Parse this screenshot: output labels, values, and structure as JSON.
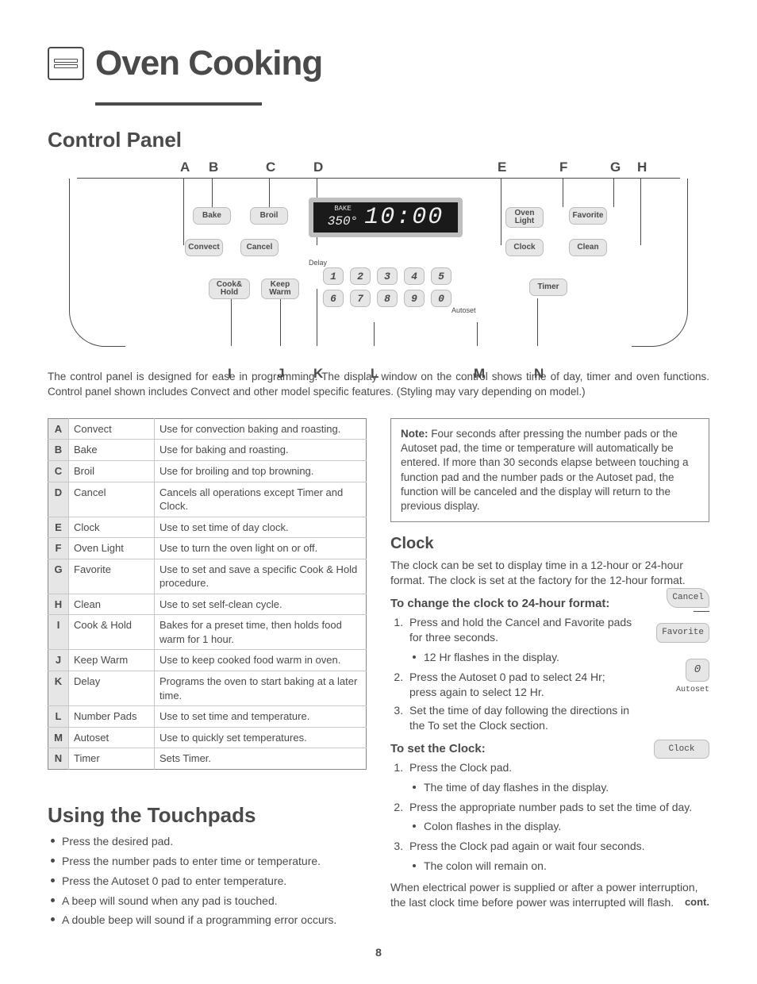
{
  "title_main": "Oven Cooking",
  "section_control_panel": "Control Panel",
  "section_touchpads": "Using the Touchpads",
  "section_clock": "Clock",
  "intro_text": "The control panel is designed for ease in programming. The display window on the control shows time of day, timer and oven functions. Control panel shown includes Convect and other model specific features. (Styling may vary depending on model.)",
  "letters_top": [
    "A",
    "B",
    "C",
    "D",
    "E",
    "F",
    "G",
    "H"
  ],
  "letters_bot": [
    "I",
    "J",
    "K",
    "L",
    "M",
    "N"
  ],
  "letters_top_x": [
    130,
    166,
    238,
    298,
    530,
    608,
    672,
    706
  ],
  "letters_bot_x": [
    190,
    252,
    298,
    370,
    500,
    576
  ],
  "panel": {
    "display": {
      "bake_label": "BAKE",
      "temp": "350°",
      "time": "10:00"
    },
    "pads": {
      "bake": "Bake",
      "broil": "Broil",
      "convect": "Convect",
      "cancel": "Cancel",
      "cookhold": "Cook&\nHold",
      "keepwarm": "Keep\nWarm",
      "delay": "Delay",
      "ovenlight": "Oven\nLight",
      "favorite": "Favorite",
      "clock": "Clock",
      "clean": "Clean",
      "timer": "Timer",
      "autoset": "Autoset"
    },
    "nums": [
      "1",
      "2",
      "3",
      "4",
      "5",
      "6",
      "7",
      "8",
      "9",
      "0"
    ]
  },
  "ref_table": [
    {
      "k": "A",
      "n": "Convect",
      "d": "Use for convection baking and roasting."
    },
    {
      "k": "B",
      "n": "Bake",
      "d": "Use for baking and roasting."
    },
    {
      "k": "C",
      "n": "Broil",
      "d": "Use for broiling and top browning."
    },
    {
      "k": "D",
      "n": "Cancel",
      "d": "Cancels all operations except Timer and Clock."
    },
    {
      "k": "E",
      "n": "Clock",
      "d": "Use to set time of day clock."
    },
    {
      "k": "F",
      "n": "Oven Light",
      "d": "Use to turn the oven light on or off."
    },
    {
      "k": "G",
      "n": "Favorite",
      "d": "Use to set and save a specific Cook & Hold procedure."
    },
    {
      "k": "H",
      "n": "Clean",
      "d": "Use to set self-clean cycle."
    },
    {
      "k": "I",
      "n": "Cook & Hold",
      "d": "Bakes for a preset time, then holds food warm for 1 hour."
    },
    {
      "k": "J",
      "n": "Keep Warm",
      "d": "Use to keep cooked food warm in oven."
    },
    {
      "k": "K",
      "n": "Delay",
      "d": "Programs the oven to start baking at a later time."
    },
    {
      "k": "L",
      "n": "Number Pads",
      "d": "Use to set time and temperature."
    },
    {
      "k": "M",
      "n": "Autoset",
      "d": "Use to quickly set temperatures."
    },
    {
      "k": "N",
      "n": "Timer",
      "d": "Sets Timer."
    }
  ],
  "touchpad_bullets": [
    "Press the desired pad.",
    "Press the number pads to enter time or temperature.",
    "Press the Autoset 0 pad to enter temperature.",
    "A beep will sound when any pad is touched.",
    "A double beep will sound if a programming error occurs."
  ],
  "note_label": "Note:",
  "note_text": " Four seconds after pressing the number pads or the Autoset pad, the time or temperature will automatically be entered. If more than 30 seconds elapse between touching a function pad and the number pads or the Autoset pad, the function will be canceled and the display will return to the previous display.",
  "clock_intro": "The clock can be set to display time in a 12-hour or 24-hour format.  The clock is set at the factory for the 12-hour format.",
  "clock_24_heading": "To change the clock to 24-hour format:",
  "clock_24_steps": [
    {
      "t": "Press and hold the Cancel and Favorite pads for three seconds.",
      "sub": [
        "12 Hr flashes in the display."
      ]
    },
    {
      "t": "Press the Autoset 0 pad to select 24 Hr; press again to select 12 Hr."
    },
    {
      "t": "Set the time of day following the directions in the To set the Clock section."
    }
  ],
  "clock_set_heading": "To set the Clock:",
  "clock_set_steps": [
    {
      "t": "Press the Clock pad.",
      "sub": [
        "The time of day flashes in the display."
      ]
    },
    {
      "t": "Press the appropriate number pads to set the time of day.",
      "sub": [
        "Colon flashes in the display."
      ]
    },
    {
      "t": "Press the Clock pad again or wait four seconds.",
      "sub": [
        "The colon will remain on."
      ]
    }
  ],
  "clock_tail": "When electrical power is supplied or after a power interruption, the last clock time before power was interrupted will flash.",
  "mini_labels": {
    "cancel": "Cancel",
    "favorite": "Favorite",
    "autoset": "Autoset",
    "clock": "Clock",
    "zero": "0"
  },
  "cont": "cont.",
  "pagenum": "8"
}
